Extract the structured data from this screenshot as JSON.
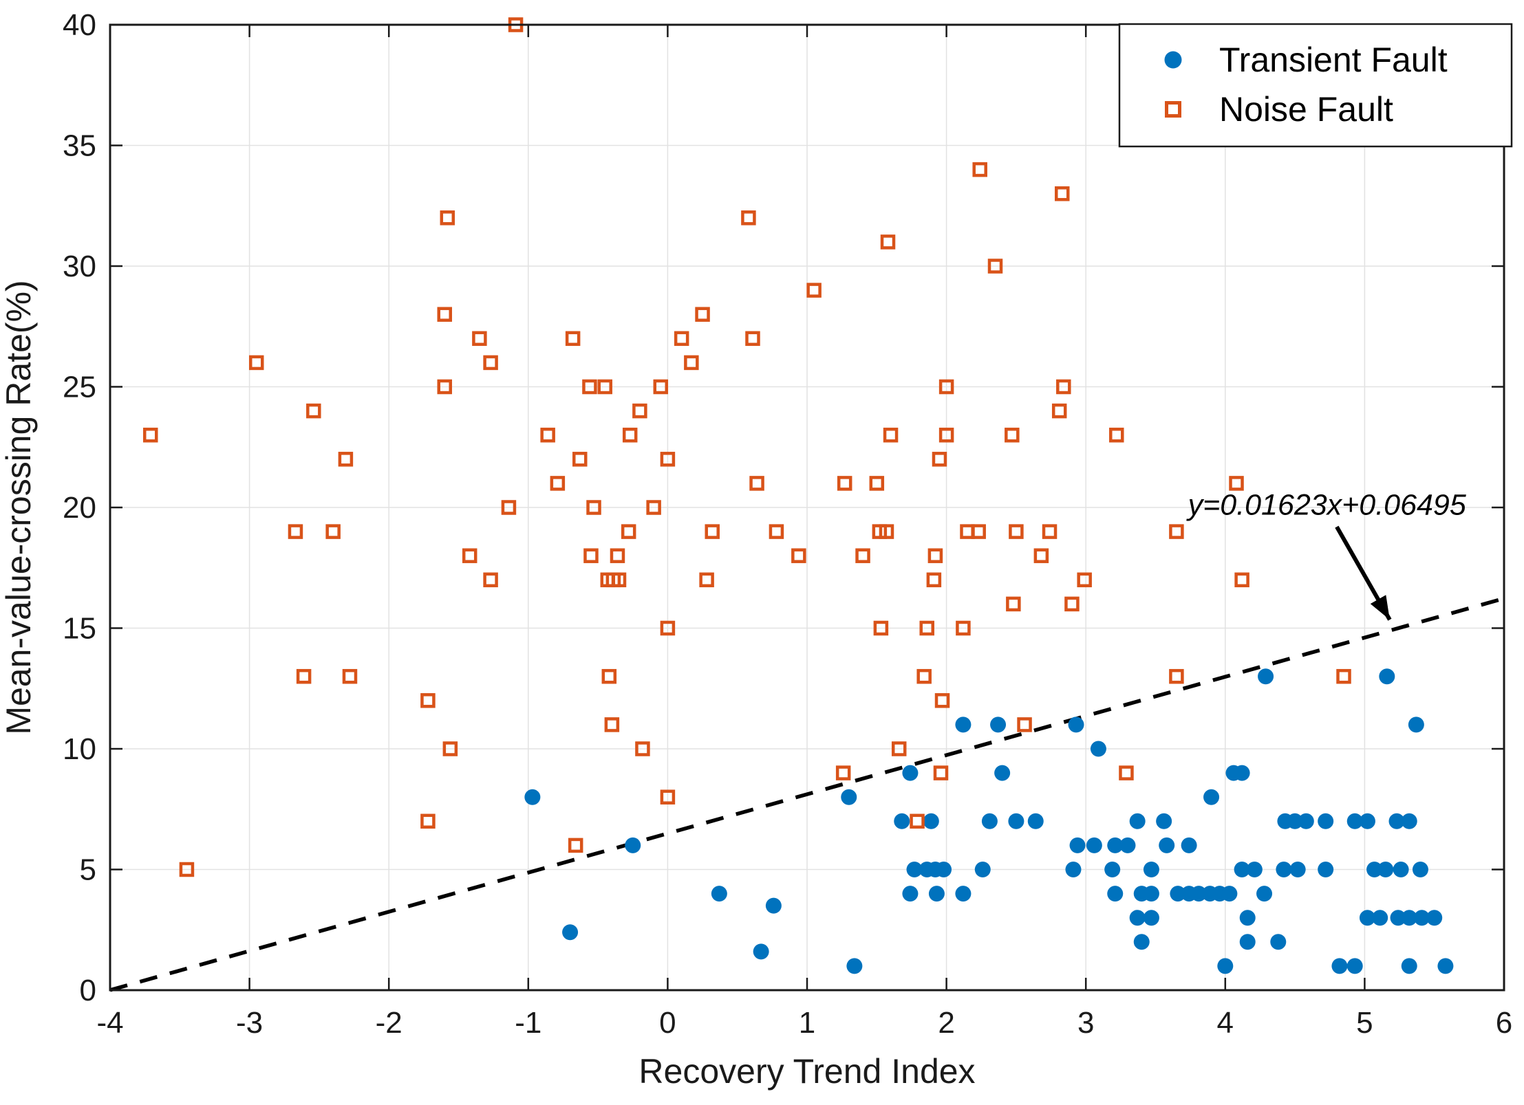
{
  "chart_data": {
    "type": "scatter",
    "title": "",
    "xlabel": "Recovery Trend Index",
    "ylabel": "Mean-value-crossing Rate(%)",
    "xlim": [
      -4,
      6
    ],
    "ylim": [
      0,
      40
    ],
    "xticks": [
      -4,
      -3,
      -2,
      -1,
      0,
      1,
      2,
      3,
      4,
      5,
      6
    ],
    "yticks": [
      0,
      5,
      10,
      15,
      20,
      25,
      30,
      35,
      40
    ],
    "grid": true,
    "legend_position": "top-right",
    "colors": {
      "transient": "#0072BD",
      "noise": "#D95319",
      "line": "#000000",
      "grid": "#E2E2E2",
      "axis": "#1a1a1a",
      "background": "#ffffff"
    },
    "series": [
      {
        "name": "Transient Fault",
        "marker": "filled-circle",
        "points": [
          [
            -0.97,
            8
          ],
          [
            -0.7,
            2.4
          ],
          [
            -0.25,
            6
          ],
          [
            0.37,
            4
          ],
          [
            0.67,
            1.6
          ],
          [
            0.76,
            3.5
          ],
          [
            1.3,
            8
          ],
          [
            1.34,
            1
          ],
          [
            1.68,
            7
          ],
          [
            1.74,
            9
          ],
          [
            1.74,
            4
          ],
          [
            1.77,
            5
          ],
          [
            1.86,
            5
          ],
          [
            1.89,
            7
          ],
          [
            1.92,
            5
          ],
          [
            1.93,
            4
          ],
          [
            1.98,
            5
          ],
          [
            2.12,
            11
          ],
          [
            2.12,
            4
          ],
          [
            2.26,
            5
          ],
          [
            2.31,
            7
          ],
          [
            2.37,
            11
          ],
          [
            2.4,
            9
          ],
          [
            2.5,
            7
          ],
          [
            2.64,
            7
          ],
          [
            2.91,
            5
          ],
          [
            2.93,
            11
          ],
          [
            2.94,
            6
          ],
          [
            3.06,
            6
          ],
          [
            3.09,
            10
          ],
          [
            3.19,
            5
          ],
          [
            3.21,
            6
          ],
          [
            3.21,
            4
          ],
          [
            3.3,
            6
          ],
          [
            3.37,
            7
          ],
          [
            3.37,
            3
          ],
          [
            3.4,
            4
          ],
          [
            3.4,
            2
          ],
          [
            3.47,
            3
          ],
          [
            3.47,
            5
          ],
          [
            3.47,
            4
          ],
          [
            3.56,
            7
          ],
          [
            3.58,
            6
          ],
          [
            3.66,
            4
          ],
          [
            3.74,
            6
          ],
          [
            3.74,
            4
          ],
          [
            3.81,
            4
          ],
          [
            3.89,
            4
          ],
          [
            3.9,
            8
          ],
          [
            3.96,
            4
          ],
          [
            4.0,
            1
          ],
          [
            4.03,
            4
          ],
          [
            4.06,
            9
          ],
          [
            4.12,
            9
          ],
          [
            4.12,
            5
          ],
          [
            4.16,
            3
          ],
          [
            4.16,
            2
          ],
          [
            4.21,
            5
          ],
          [
            4.28,
            4
          ],
          [
            4.29,
            13
          ],
          [
            4.38,
            2
          ],
          [
            4.42,
            5
          ],
          [
            4.43,
            7
          ],
          [
            4.5,
            7
          ],
          [
            4.52,
            5
          ],
          [
            4.58,
            7
          ],
          [
            4.72,
            7
          ],
          [
            4.72,
            5
          ],
          [
            4.82,
            1
          ],
          [
            4.93,
            7
          ],
          [
            4.93,
            1
          ],
          [
            5.02,
            7
          ],
          [
            5.02,
            3
          ],
          [
            5.07,
            5
          ],
          [
            5.11,
            3
          ],
          [
            5.15,
            5
          ],
          [
            5.16,
            13
          ],
          [
            5.23,
            7
          ],
          [
            5.24,
            3
          ],
          [
            5.26,
            5
          ],
          [
            5.32,
            7
          ],
          [
            5.32,
            3
          ],
          [
            5.32,
            1
          ],
          [
            5.37,
            11
          ],
          [
            5.4,
            5
          ],
          [
            5.41,
            3
          ],
          [
            5.5,
            3
          ],
          [
            5.58,
            1
          ]
        ]
      },
      {
        "name": "Noise Fault",
        "marker": "open-square",
        "points": [
          [
            -3.71,
            23
          ],
          [
            -3.45,
            5
          ],
          [
            -2.95,
            26
          ],
          [
            -2.67,
            19
          ],
          [
            -2.61,
            13
          ],
          [
            -2.54,
            24
          ],
          [
            -2.4,
            19
          ],
          [
            -2.31,
            22
          ],
          [
            -2.28,
            13
          ],
          [
            -1.72,
            12
          ],
          [
            -1.72,
            7
          ],
          [
            -1.6,
            25
          ],
          [
            -1.6,
            28
          ],
          [
            -1.58,
            32
          ],
          [
            -1.56,
            10
          ],
          [
            -1.42,
            18
          ],
          [
            -1.35,
            27
          ],
          [
            -1.27,
            26
          ],
          [
            -1.27,
            17
          ],
          [
            -1.14,
            20
          ],
          [
            -1.09,
            40
          ],
          [
            -0.86,
            23
          ],
          [
            -0.79,
            21
          ],
          [
            -0.68,
            27
          ],
          [
            -0.66,
            6
          ],
          [
            -0.63,
            22
          ],
          [
            -0.56,
            25
          ],
          [
            -0.55,
            18
          ],
          [
            -0.53,
            20
          ],
          [
            -0.45,
            25
          ],
          [
            -0.43,
            17
          ],
          [
            -0.42,
            13
          ],
          [
            -0.4,
            11
          ],
          [
            -0.39,
            17
          ],
          [
            -0.36,
            18
          ],
          [
            -0.35,
            17
          ],
          [
            -0.28,
            19
          ],
          [
            -0.27,
            23
          ],
          [
            -0.2,
            24
          ],
          [
            -0.18,
            10
          ],
          [
            -0.1,
            20
          ],
          [
            -0.05,
            25
          ],
          [
            0.0,
            22
          ],
          [
            0.0,
            15
          ],
          [
            0.0,
            8
          ],
          [
            0.1,
            27
          ],
          [
            0.17,
            26
          ],
          [
            0.25,
            28
          ],
          [
            0.28,
            17
          ],
          [
            0.32,
            19
          ],
          [
            0.58,
            32
          ],
          [
            0.61,
            27
          ],
          [
            0.64,
            21
          ],
          [
            0.78,
            19
          ],
          [
            0.94,
            18
          ],
          [
            1.05,
            29
          ],
          [
            1.26,
            9
          ],
          [
            1.27,
            21
          ],
          [
            1.4,
            18
          ],
          [
            1.5,
            21
          ],
          [
            1.52,
            19
          ],
          [
            1.57,
            19
          ],
          [
            1.53,
            15
          ],
          [
            1.58,
            31
          ],
          [
            1.6,
            23
          ],
          [
            1.66,
            10
          ],
          [
            1.79,
            7
          ],
          [
            1.84,
            13
          ],
          [
            1.86,
            15
          ],
          [
            1.91,
            17
          ],
          [
            1.92,
            18
          ],
          [
            1.95,
            22
          ],
          [
            1.96,
            9
          ],
          [
            1.97,
            12
          ],
          [
            2.0,
            25
          ],
          [
            2.0,
            23
          ],
          [
            2.12,
            15
          ],
          [
            2.15,
            19
          ],
          [
            2.23,
            19
          ],
          [
            2.24,
            34
          ],
          [
            2.35,
            30
          ],
          [
            2.47,
            23
          ],
          [
            2.48,
            16
          ],
          [
            2.5,
            19
          ],
          [
            2.56,
            11
          ],
          [
            2.68,
            18
          ],
          [
            2.74,
            19
          ],
          [
            2.81,
            24
          ],
          [
            2.83,
            33
          ],
          [
            2.84,
            25
          ],
          [
            2.9,
            16
          ],
          [
            2.99,
            17
          ],
          [
            3.22,
            23
          ],
          [
            3.29,
            9
          ],
          [
            3.65,
            19
          ],
          [
            3.65,
            13
          ],
          [
            4.08,
            21
          ],
          [
            4.12,
            17
          ],
          [
            4.85,
            13
          ]
        ]
      }
    ],
    "separator_line": {
      "style": "dashed",
      "x1": -4,
      "y1": 0.003,
      "x2": 6,
      "y2": 16.23,
      "equation_label": "y=0.01623x+0.06495"
    },
    "annotation": {
      "text": "y=0.01623x+0.06495",
      "text_x": 4.73,
      "text_y": 20.1,
      "arrow_from_x": 4.8,
      "arrow_from_y": 19.2,
      "arrow_to_x": 5.18,
      "arrow_to_y": 15.35
    },
    "legend": {
      "entries": [
        {
          "label": "Transient Fault",
          "marker": "filled-circle",
          "color": "#0072BD"
        },
        {
          "label": "Noise Fault",
          "marker": "open-square",
          "color": "#D95319"
        }
      ]
    }
  }
}
